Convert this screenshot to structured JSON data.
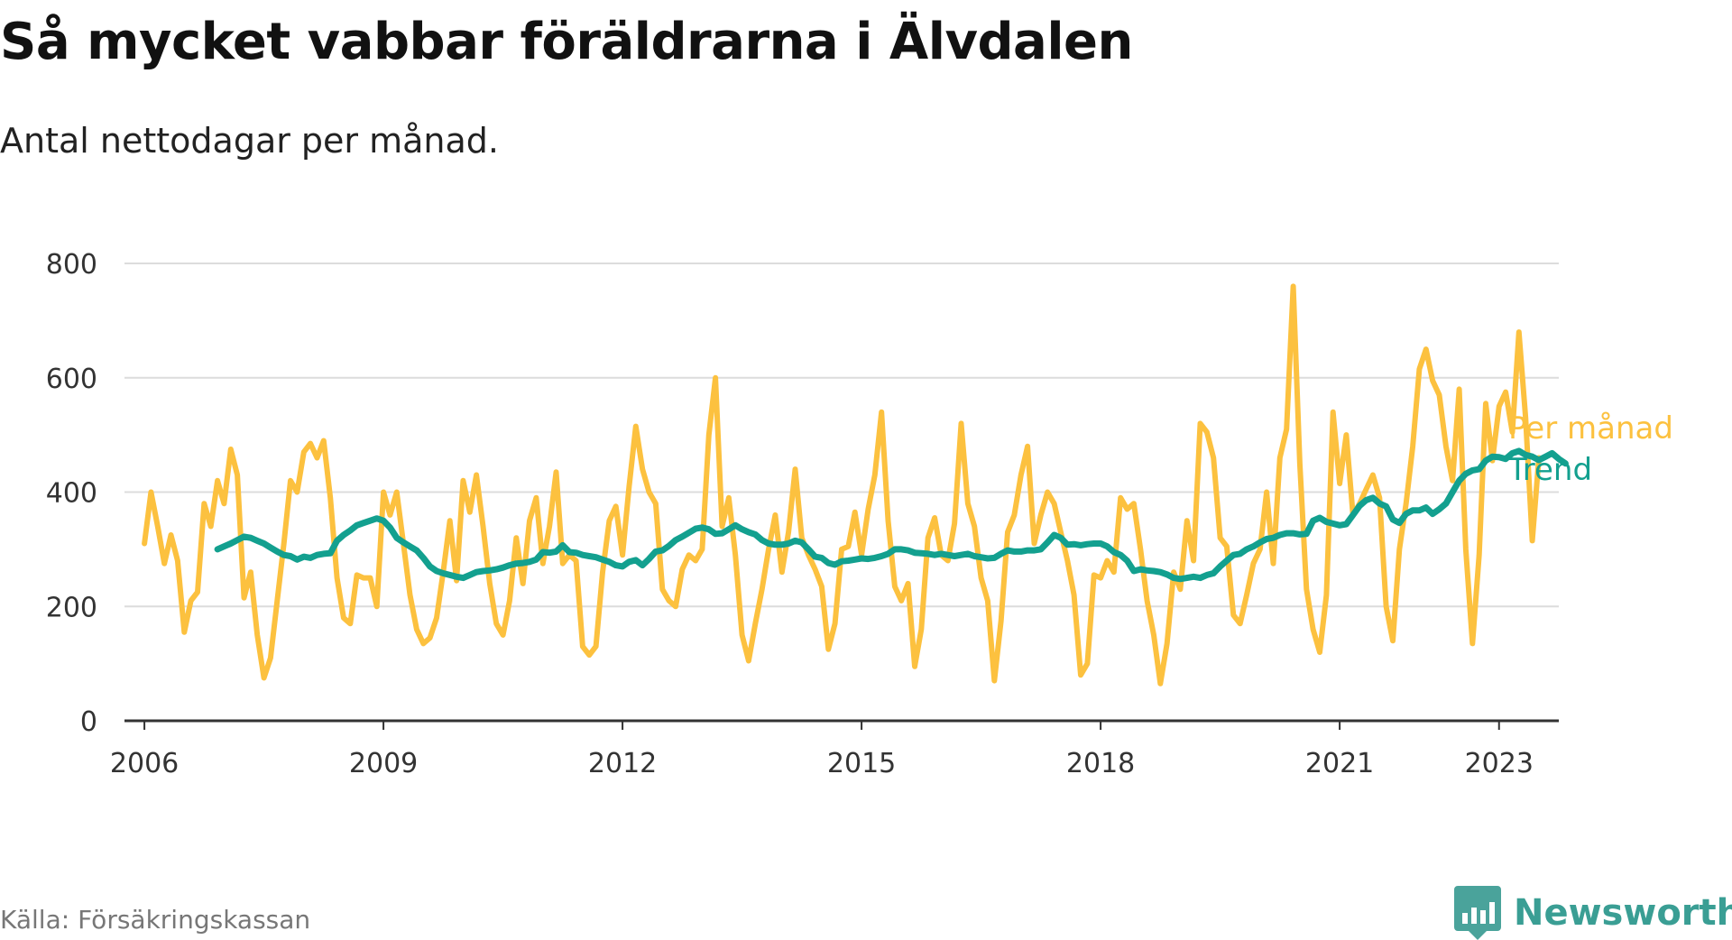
{
  "title": "Så mycket vabbar föräldrarna i Älvdalen",
  "subtitle": "Antal nettodagar per månad.",
  "source": "Källa: Försäkringskassan",
  "brand": {
    "name": "Newsworthy",
    "icon": "newsworthy-logo-icon",
    "color": "#3a9e94"
  },
  "colors": {
    "monthly": "#fcc13f",
    "trend": "#13a08f",
    "grid": "#dcdcdc",
    "axis": "#333333"
  },
  "chart_data": {
    "type": "line",
    "title": "Så mycket vabbar föräldrarna i Älvdalen",
    "subtitle": "Antal nettodagar per månad.",
    "xlabel": "",
    "ylabel": "",
    "x_start": "2006-01",
    "frequency": "monthly",
    "xlim": [
      2005.75,
      2023.75
    ],
    "ylim": [
      0,
      800
    ],
    "y_ticks": [
      0,
      200,
      400,
      600,
      800
    ],
    "x_ticks": [
      {
        "label": "2006",
        "value": 2006
      },
      {
        "label": "2009",
        "value": 2009
      },
      {
        "label": "2012",
        "value": 2012
      },
      {
        "label": "2015",
        "value": 2015
      },
      {
        "label": "2018",
        "value": 2018
      },
      {
        "label": "2021",
        "value": 2021
      },
      {
        "label": "2023",
        "value": 2023
      }
    ],
    "grid": true,
    "legend": "end-of-line labels",
    "series": [
      {
        "name": "Per månad",
        "color": "#fcc13f",
        "start": "2006-01",
        "values": [
          310,
          400,
          340,
          275,
          325,
          280,
          155,
          210,
          225,
          380,
          340,
          420,
          380,
          475,
          430,
          215,
          260,
          150,
          75,
          110,
          210,
          310,
          420,
          400,
          470,
          485,
          460,
          490,
          390,
          250,
          180,
          170,
          255,
          250,
          250,
          200,
          400,
          360,
          400,
          310,
          220,
          160,
          135,
          145,
          180,
          260,
          350,
          245,
          420,
          365,
          430,
          340,
          240,
          170,
          150,
          210,
          320,
          240,
          350,
          390,
          275,
          340,
          435,
          275,
          290,
          280,
          130,
          115,
          130,
          260,
          350,
          375,
          290,
          410,
          515,
          440,
          400,
          380,
          230,
          210,
          200,
          265,
          290,
          280,
          300,
          500,
          600,
          340,
          390,
          290,
          150,
          105,
          170,
          230,
          300,
          360,
          260,
          330,
          440,
          320,
          290,
          265,
          235,
          125,
          170,
          300,
          305,
          365,
          290,
          370,
          430,
          540,
          350,
          235,
          210,
          240,
          95,
          160,
          320,
          355,
          290,
          280,
          345,
          520,
          380,
          340,
          250,
          210,
          70,
          175,
          330,
          360,
          430,
          480,
          310,
          360,
          400,
          380,
          330,
          280,
          220,
          80,
          100,
          255,
          250,
          280,
          260,
          390,
          370,
          380,
          300,
          210,
          150,
          65,
          135,
          260,
          230,
          350,
          280,
          520,
          505,
          460,
          320,
          305,
          185,
          170,
          220,
          275,
          300,
          400,
          275,
          460,
          510,
          760,
          450,
          230,
          160,
          120,
          220,
          540,
          415,
          500,
          360,
          380,
          405,
          430,
          390,
          200,
          140,
          300,
          380,
          480,
          615,
          650,
          595,
          570,
          480,
          420,
          580,
          300,
          135,
          290,
          555,
          455,
          550,
          575,
          505,
          680,
          530,
          315,
          460
        ]
      },
      {
        "name": "Trend",
        "color": "#13a08f",
        "start": "2006-12",
        "values": [
          300,
          305,
          310,
          316,
          322,
          320,
          315,
          310,
          303,
          296,
          290,
          288,
          282,
          287,
          285,
          290,
          292,
          293,
          315,
          325,
          333,
          342,
          346,
          350,
          354,
          350,
          338,
          320,
          312,
          305,
          298,
          285,
          270,
          262,
          258,
          255,
          252,
          250,
          255,
          260,
          262,
          263,
          265,
          268,
          272,
          275,
          276,
          278,
          282,
          295,
          294,
          296,
          307,
          295,
          294,
          290,
          288,
          286,
          282,
          278,
          272,
          270,
          278,
          281,
          272,
          283,
          296,
          298,
          306,
          316,
          322,
          329,
          336,
          338,
          335,
          327,
          328,
          335,
          342,
          335,
          330,
          326,
          316,
          310,
          308,
          308,
          310,
          315,
          312,
          300,
          287,
          285,
          276,
          273,
          279,
          280,
          282,
          284,
          283,
          285,
          288,
          292,
          300,
          300,
          298,
          294,
          293,
          292,
          290,
          292,
          290,
          288,
          290,
          292,
          288,
          286,
          284,
          285,
          292,
          298,
          296,
          296,
          298,
          298,
          300,
          312,
          325,
          320,
          308,
          309,
          307,
          309,
          310,
          310,
          305,
          295,
          290,
          280,
          262,
          265,
          263,
          262,
          260,
          256,
          250,
          248,
          250,
          252,
          250,
          255,
          258,
          270,
          280,
          290,
          292,
          300,
          305,
          312,
          318,
          320,
          325,
          328,
          328,
          326,
          327,
          350,
          355,
          348,
          345,
          342,
          344,
          360,
          376,
          386,
          390,
          380,
          375,
          352,
          346,
          362,
          368,
          368,
          373,
          362,
          370,
          380,
          400,
          420,
          432,
          438,
          440,
          455,
          462,
          461,
          458,
          468,
          472,
          465,
          462,
          456,
          462,
          468,
          458,
          450
        ]
      }
    ]
  }
}
